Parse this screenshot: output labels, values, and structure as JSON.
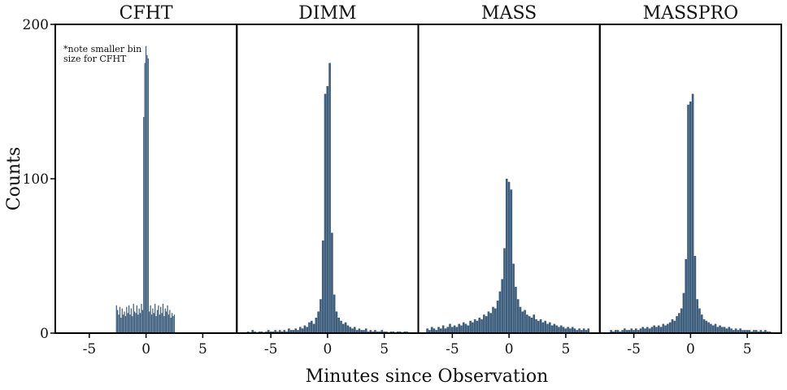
{
  "chart_data": {
    "type": "bar",
    "xlabel": "Minutes since Observation",
    "ylabel": "Counts",
    "xlim": [
      -8,
      8
    ],
    "ylim": [
      0,
      200
    ],
    "xticks": [
      -5,
      0,
      5
    ],
    "xtick_labels": [
      "-5",
      "0",
      "5"
    ],
    "yticks": [
      0,
      100,
      200
    ],
    "ytick_labels": [
      "0",
      "100",
      "200"
    ],
    "bar_color": "#3e5e7d",
    "grid": false,
    "panels": [
      {
        "title": "CFHT",
        "note": [
          "*note smaller bin",
          "size for CFHT"
        ],
        "bin_width": 0.1,
        "bins": [
          [
            -2.6,
            18
          ],
          [
            -2.5,
            15
          ],
          [
            -2.4,
            12
          ],
          [
            -2.3,
            17
          ],
          [
            -2.2,
            10
          ],
          [
            -2.1,
            16
          ],
          [
            -2.0,
            12
          ],
          [
            -1.9,
            14
          ],
          [
            -1.8,
            11
          ],
          [
            -1.7,
            17
          ],
          [
            -1.6,
            13
          ],
          [
            -1.5,
            18
          ],
          [
            -1.4,
            12
          ],
          [
            -1.3,
            16
          ],
          [
            -1.2,
            11
          ],
          [
            -1.1,
            19
          ],
          [
            -1.0,
            14
          ],
          [
            -0.9,
            13
          ],
          [
            -0.8,
            18
          ],
          [
            -0.7,
            12
          ],
          [
            -0.6,
            16
          ],
          [
            -0.5,
            13
          ],
          [
            -0.4,
            19
          ],
          [
            -0.3,
            15
          ],
          [
            -0.2,
            140
          ],
          [
            -0.1,
            175
          ],
          [
            0.0,
            186
          ],
          [
            0.1,
            180
          ],
          [
            0.2,
            178
          ],
          [
            0.3,
            14
          ],
          [
            0.4,
            18
          ],
          [
            0.5,
            12
          ],
          [
            0.6,
            16
          ],
          [
            0.7,
            13
          ],
          [
            0.8,
            19
          ],
          [
            0.9,
            11
          ],
          [
            1.0,
            15
          ],
          [
            1.1,
            18
          ],
          [
            1.2,
            12
          ],
          [
            1.3,
            17
          ],
          [
            1.4,
            13
          ],
          [
            1.5,
            19
          ],
          [
            1.6,
            11
          ],
          [
            1.7,
            16
          ],
          [
            1.8,
            14
          ],
          [
            1.9,
            18
          ],
          [
            2.0,
            12
          ],
          [
            2.1,
            15
          ],
          [
            2.2,
            10
          ],
          [
            2.3,
            13
          ],
          [
            2.4,
            11
          ],
          [
            2.5,
            12
          ]
        ]
      },
      {
        "title": "DIMM",
        "bin_width": 0.2,
        "bins": [
          [
            -7.0,
            1
          ],
          [
            -6.8,
            0
          ],
          [
            -6.6,
            2
          ],
          [
            -6.4,
            1
          ],
          [
            -6.2,
            0
          ],
          [
            -6.0,
            1
          ],
          [
            -5.8,
            1
          ],
          [
            -5.6,
            0
          ],
          [
            -5.4,
            1
          ],
          [
            -5.2,
            2
          ],
          [
            -5.0,
            1
          ],
          [
            -4.8,
            1
          ],
          [
            -4.6,
            2
          ],
          [
            -4.4,
            1
          ],
          [
            -4.2,
            2
          ],
          [
            -4.0,
            1
          ],
          [
            -3.8,
            2
          ],
          [
            -3.6,
            1
          ],
          [
            -3.4,
            3
          ],
          [
            -3.2,
            2
          ],
          [
            -3.0,
            2
          ],
          [
            -2.8,
            3
          ],
          [
            -2.6,
            2
          ],
          [
            -2.4,
            4
          ],
          [
            -2.2,
            3
          ],
          [
            -2.0,
            5
          ],
          [
            -1.8,
            4
          ],
          [
            -1.6,
            7
          ],
          [
            -1.4,
            8
          ],
          [
            -1.2,
            6
          ],
          [
            -1.0,
            10
          ],
          [
            -0.8,
            14
          ],
          [
            -0.6,
            22
          ],
          [
            -0.4,
            60
          ],
          [
            -0.2,
            155
          ],
          [
            0.0,
            160
          ],
          [
            0.2,
            175
          ],
          [
            0.4,
            65
          ],
          [
            0.6,
            25
          ],
          [
            0.8,
            14
          ],
          [
            1.0,
            10
          ],
          [
            1.2,
            8
          ],
          [
            1.4,
            6
          ],
          [
            1.6,
            7
          ],
          [
            1.8,
            5
          ],
          [
            2.0,
            4
          ],
          [
            2.2,
            3
          ],
          [
            2.4,
            4
          ],
          [
            2.6,
            2
          ],
          [
            2.8,
            3
          ],
          [
            3.0,
            2
          ],
          [
            3.2,
            2
          ],
          [
            3.4,
            3
          ],
          [
            3.6,
            1
          ],
          [
            3.8,
            2
          ],
          [
            4.0,
            1
          ],
          [
            4.2,
            2
          ],
          [
            4.4,
            1
          ],
          [
            4.6,
            1
          ],
          [
            4.8,
            2
          ],
          [
            5.0,
            1
          ],
          [
            5.2,
            1
          ],
          [
            5.4,
            0
          ],
          [
            5.6,
            1
          ],
          [
            5.8,
            1
          ],
          [
            6.0,
            0
          ],
          [
            6.2,
            1
          ],
          [
            6.4,
            1
          ],
          [
            6.6,
            0
          ],
          [
            6.8,
            1
          ],
          [
            7.0,
            1
          ]
        ]
      },
      {
        "title": "MASS",
        "bin_width": 0.2,
        "bins": [
          [
            -7.2,
            3
          ],
          [
            -7.0,
            2
          ],
          [
            -6.8,
            4
          ],
          [
            -6.6,
            3
          ],
          [
            -6.4,
            2
          ],
          [
            -6.2,
            4
          ],
          [
            -6.0,
            3
          ],
          [
            -5.8,
            5
          ],
          [
            -5.6,
            3
          ],
          [
            -5.4,
            4
          ],
          [
            -5.2,
            6
          ],
          [
            -5.0,
            4
          ],
          [
            -4.8,
            5
          ],
          [
            -4.6,
            4
          ],
          [
            -4.4,
            6
          ],
          [
            -4.2,
            5
          ],
          [
            -4.0,
            7
          ],
          [
            -3.8,
            6
          ],
          [
            -3.6,
            5
          ],
          [
            -3.4,
            8
          ],
          [
            -3.2,
            7
          ],
          [
            -3.0,
            9
          ],
          [
            -2.8,
            8
          ],
          [
            -2.6,
            10
          ],
          [
            -2.4,
            9
          ],
          [
            -2.2,
            12
          ],
          [
            -2.0,
            11
          ],
          [
            -1.8,
            14
          ],
          [
            -1.6,
            13
          ],
          [
            -1.4,
            17
          ],
          [
            -1.2,
            16
          ],
          [
            -1.0,
            21
          ],
          [
            -0.8,
            27
          ],
          [
            -0.6,
            35
          ],
          [
            -0.4,
            55
          ],
          [
            -0.2,
            100
          ],
          [
            0.0,
            98
          ],
          [
            0.2,
            93
          ],
          [
            0.4,
            45
          ],
          [
            0.6,
            30
          ],
          [
            0.8,
            22
          ],
          [
            1.0,
            17
          ],
          [
            1.2,
            14
          ],
          [
            1.4,
            15
          ],
          [
            1.6,
            12
          ],
          [
            1.8,
            11
          ],
          [
            2.0,
            10
          ],
          [
            2.2,
            12
          ],
          [
            2.4,
            9
          ],
          [
            2.6,
            8
          ],
          [
            2.8,
            9
          ],
          [
            3.0,
            7
          ],
          [
            3.2,
            8
          ],
          [
            3.4,
            6
          ],
          [
            3.6,
            7
          ],
          [
            3.8,
            5
          ],
          [
            4.0,
            6
          ],
          [
            4.2,
            5
          ],
          [
            4.4,
            4
          ],
          [
            4.6,
            5
          ],
          [
            4.8,
            4
          ],
          [
            5.0,
            3
          ],
          [
            5.2,
            4
          ],
          [
            5.4,
            3
          ],
          [
            5.6,
            4
          ],
          [
            5.8,
            3
          ],
          [
            6.0,
            2
          ],
          [
            6.2,
            3
          ],
          [
            6.4,
            2
          ],
          [
            6.6,
            3
          ],
          [
            6.8,
            2
          ],
          [
            7.0,
            3
          ]
        ]
      },
      {
        "title": "MASSPRO",
        "bin_width": 0.2,
        "bins": [
          [
            -7.0,
            2
          ],
          [
            -6.8,
            1
          ],
          [
            -6.6,
            2
          ],
          [
            -6.4,
            2
          ],
          [
            -6.2,
            1
          ],
          [
            -6.0,
            2
          ],
          [
            -5.8,
            3
          ],
          [
            -5.6,
            2
          ],
          [
            -5.4,
            2
          ],
          [
            -5.2,
            3
          ],
          [
            -5.0,
            2
          ],
          [
            -4.8,
            3
          ],
          [
            -4.6,
            2
          ],
          [
            -4.4,
            3
          ],
          [
            -4.2,
            4
          ],
          [
            -4.0,
            3
          ],
          [
            -3.8,
            4
          ],
          [
            -3.6,
            3
          ],
          [
            -3.4,
            4
          ],
          [
            -3.2,
            5
          ],
          [
            -3.0,
            4
          ],
          [
            -2.8,
            5
          ],
          [
            -2.6,
            4
          ],
          [
            -2.4,
            6
          ],
          [
            -2.2,
            5
          ],
          [
            -2.0,
            6
          ],
          [
            -1.8,
            7
          ],
          [
            -1.6,
            9
          ],
          [
            -1.4,
            8
          ],
          [
            -1.2,
            11
          ],
          [
            -1.0,
            13
          ],
          [
            -0.8,
            16
          ],
          [
            -0.6,
            26
          ],
          [
            -0.4,
            48
          ],
          [
            -0.2,
            148
          ],
          [
            0.0,
            150
          ],
          [
            0.2,
            155
          ],
          [
            0.4,
            50
          ],
          [
            0.6,
            22
          ],
          [
            0.8,
            16
          ],
          [
            1.0,
            12
          ],
          [
            1.2,
            9
          ],
          [
            1.4,
            8
          ],
          [
            1.6,
            7
          ],
          [
            1.8,
            6
          ],
          [
            2.0,
            5
          ],
          [
            2.2,
            6
          ],
          [
            2.4,
            4
          ],
          [
            2.6,
            5
          ],
          [
            2.8,
            4
          ],
          [
            3.0,
            4
          ],
          [
            3.2,
            3
          ],
          [
            3.4,
            4
          ],
          [
            3.6,
            3
          ],
          [
            3.8,
            2
          ],
          [
            4.0,
            3
          ],
          [
            4.2,
            2
          ],
          [
            4.4,
            3
          ],
          [
            4.6,
            2
          ],
          [
            4.8,
            2
          ],
          [
            5.0,
            2
          ],
          [
            5.2,
            2
          ],
          [
            5.4,
            1
          ],
          [
            5.6,
            2
          ],
          [
            5.8,
            2
          ],
          [
            6.0,
            1
          ],
          [
            6.2,
            2
          ],
          [
            6.4,
            1
          ],
          [
            6.6,
            2
          ],
          [
            6.8,
            1
          ],
          [
            7.0,
            1
          ]
        ]
      }
    ]
  }
}
